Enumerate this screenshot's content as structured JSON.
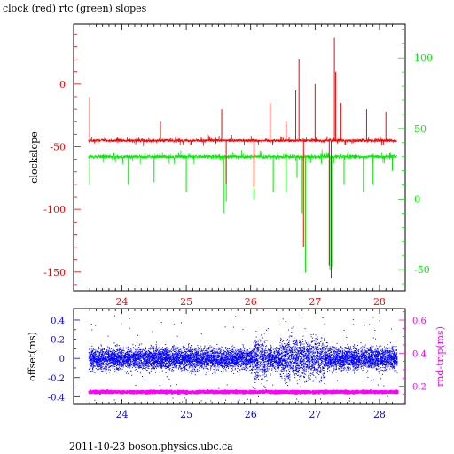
{
  "title": "clock (red) rtc (green) slopes",
  "footer": "2011-10-23  boson.physics.ubc.ca",
  "colors": {
    "red": "#ff0000",
    "green": "#00ee00",
    "blue": "#0000ff",
    "magenta": "#ff00ff",
    "black": "#000000"
  },
  "chart_data": [
    {
      "type": "line",
      "xlim": [
        23.25,
        28.4
      ],
      "x_ticks": [
        "24",
        "25",
        "26",
        "27",
        "28"
      ],
      "ylabel": "clockslope",
      "ylim_left": [
        -165,
        48
      ],
      "left_ticks": [
        "0",
        "-50",
        "-100",
        "-150"
      ],
      "ylim_right": [
        -65,
        124
      ],
      "right_ticks": [
        "100",
        "50",
        "0",
        "-50"
      ],
      "series": [
        {
          "name": "clock",
          "axis": "left",
          "color": "red",
          "x_range": [
            23.48,
            28.27
          ],
          "baseline": -45,
          "spikes": [
            [
              23.5,
              -10
            ],
            [
              24.6,
              -30
            ],
            [
              25.55,
              -20
            ],
            [
              25.62,
              -80
            ],
            [
              26.05,
              -82
            ],
            [
              26.3,
              -15
            ],
            [
              26.55,
              -30
            ],
            [
              26.7,
              -5
            ],
            [
              26.75,
              20
            ],
            [
              26.82,
              -130
            ],
            [
              27.0,
              0
            ],
            [
              27.22,
              -145
            ],
            [
              27.25,
              -155
            ],
            [
              27.3,
              37
            ],
            [
              27.32,
              10
            ],
            [
              27.4,
              -15
            ],
            [
              27.8,
              -20
            ],
            [
              28.1,
              -22
            ]
          ]
        },
        {
          "name": "rtc",
          "axis": "right",
          "color": "green",
          "x_range": [
            23.48,
            28.27
          ],
          "baseline": 30,
          "spikes": [
            [
              23.5,
              10
            ],
            [
              24.1,
              10
            ],
            [
              24.5,
              12
            ],
            [
              25.0,
              5
            ],
            [
              25.58,
              -10
            ],
            [
              25.62,
              -2
            ],
            [
              26.05,
              0
            ],
            [
              26.35,
              5
            ],
            [
              26.55,
              5
            ],
            [
              26.72,
              15
            ],
            [
              26.8,
              -10
            ],
            [
              26.85,
              -52
            ],
            [
              27.1,
              25
            ],
            [
              27.23,
              -50
            ],
            [
              27.27,
              -48
            ],
            [
              27.45,
              10
            ],
            [
              27.75,
              5
            ],
            [
              27.9,
              10
            ],
            [
              28.2,
              20
            ]
          ]
        }
      ]
    },
    {
      "type": "scatter",
      "xlim": [
        23.25,
        28.4
      ],
      "x_ticks": [
        "24",
        "25",
        "26",
        "27",
        "28"
      ],
      "ylabel_left": "offset(ms)",
      "ylim_left": [
        -0.48,
        0.52
      ],
      "left_ticks": [
        "0.4",
        "0.2",
        "0",
        "-0.2",
        "-0.4"
      ],
      "ylabel_right": "rnd-trip(ms)",
      "ylim_right": [
        0.09,
        0.67
      ],
      "right_ticks": [
        "0.6",
        "0.4",
        "0.2"
      ],
      "series": [
        {
          "name": "offset",
          "axis": "left",
          "color": "blue",
          "x_range": [
            23.48,
            28.27
          ],
          "center": 0.0,
          "spread": 0.12
        },
        {
          "name": "rnd-trip",
          "axis": "right",
          "color": "magenta",
          "x_range": [
            23.48,
            28.27
          ],
          "center": 0.165,
          "spread": 0.008
        }
      ]
    }
  ]
}
